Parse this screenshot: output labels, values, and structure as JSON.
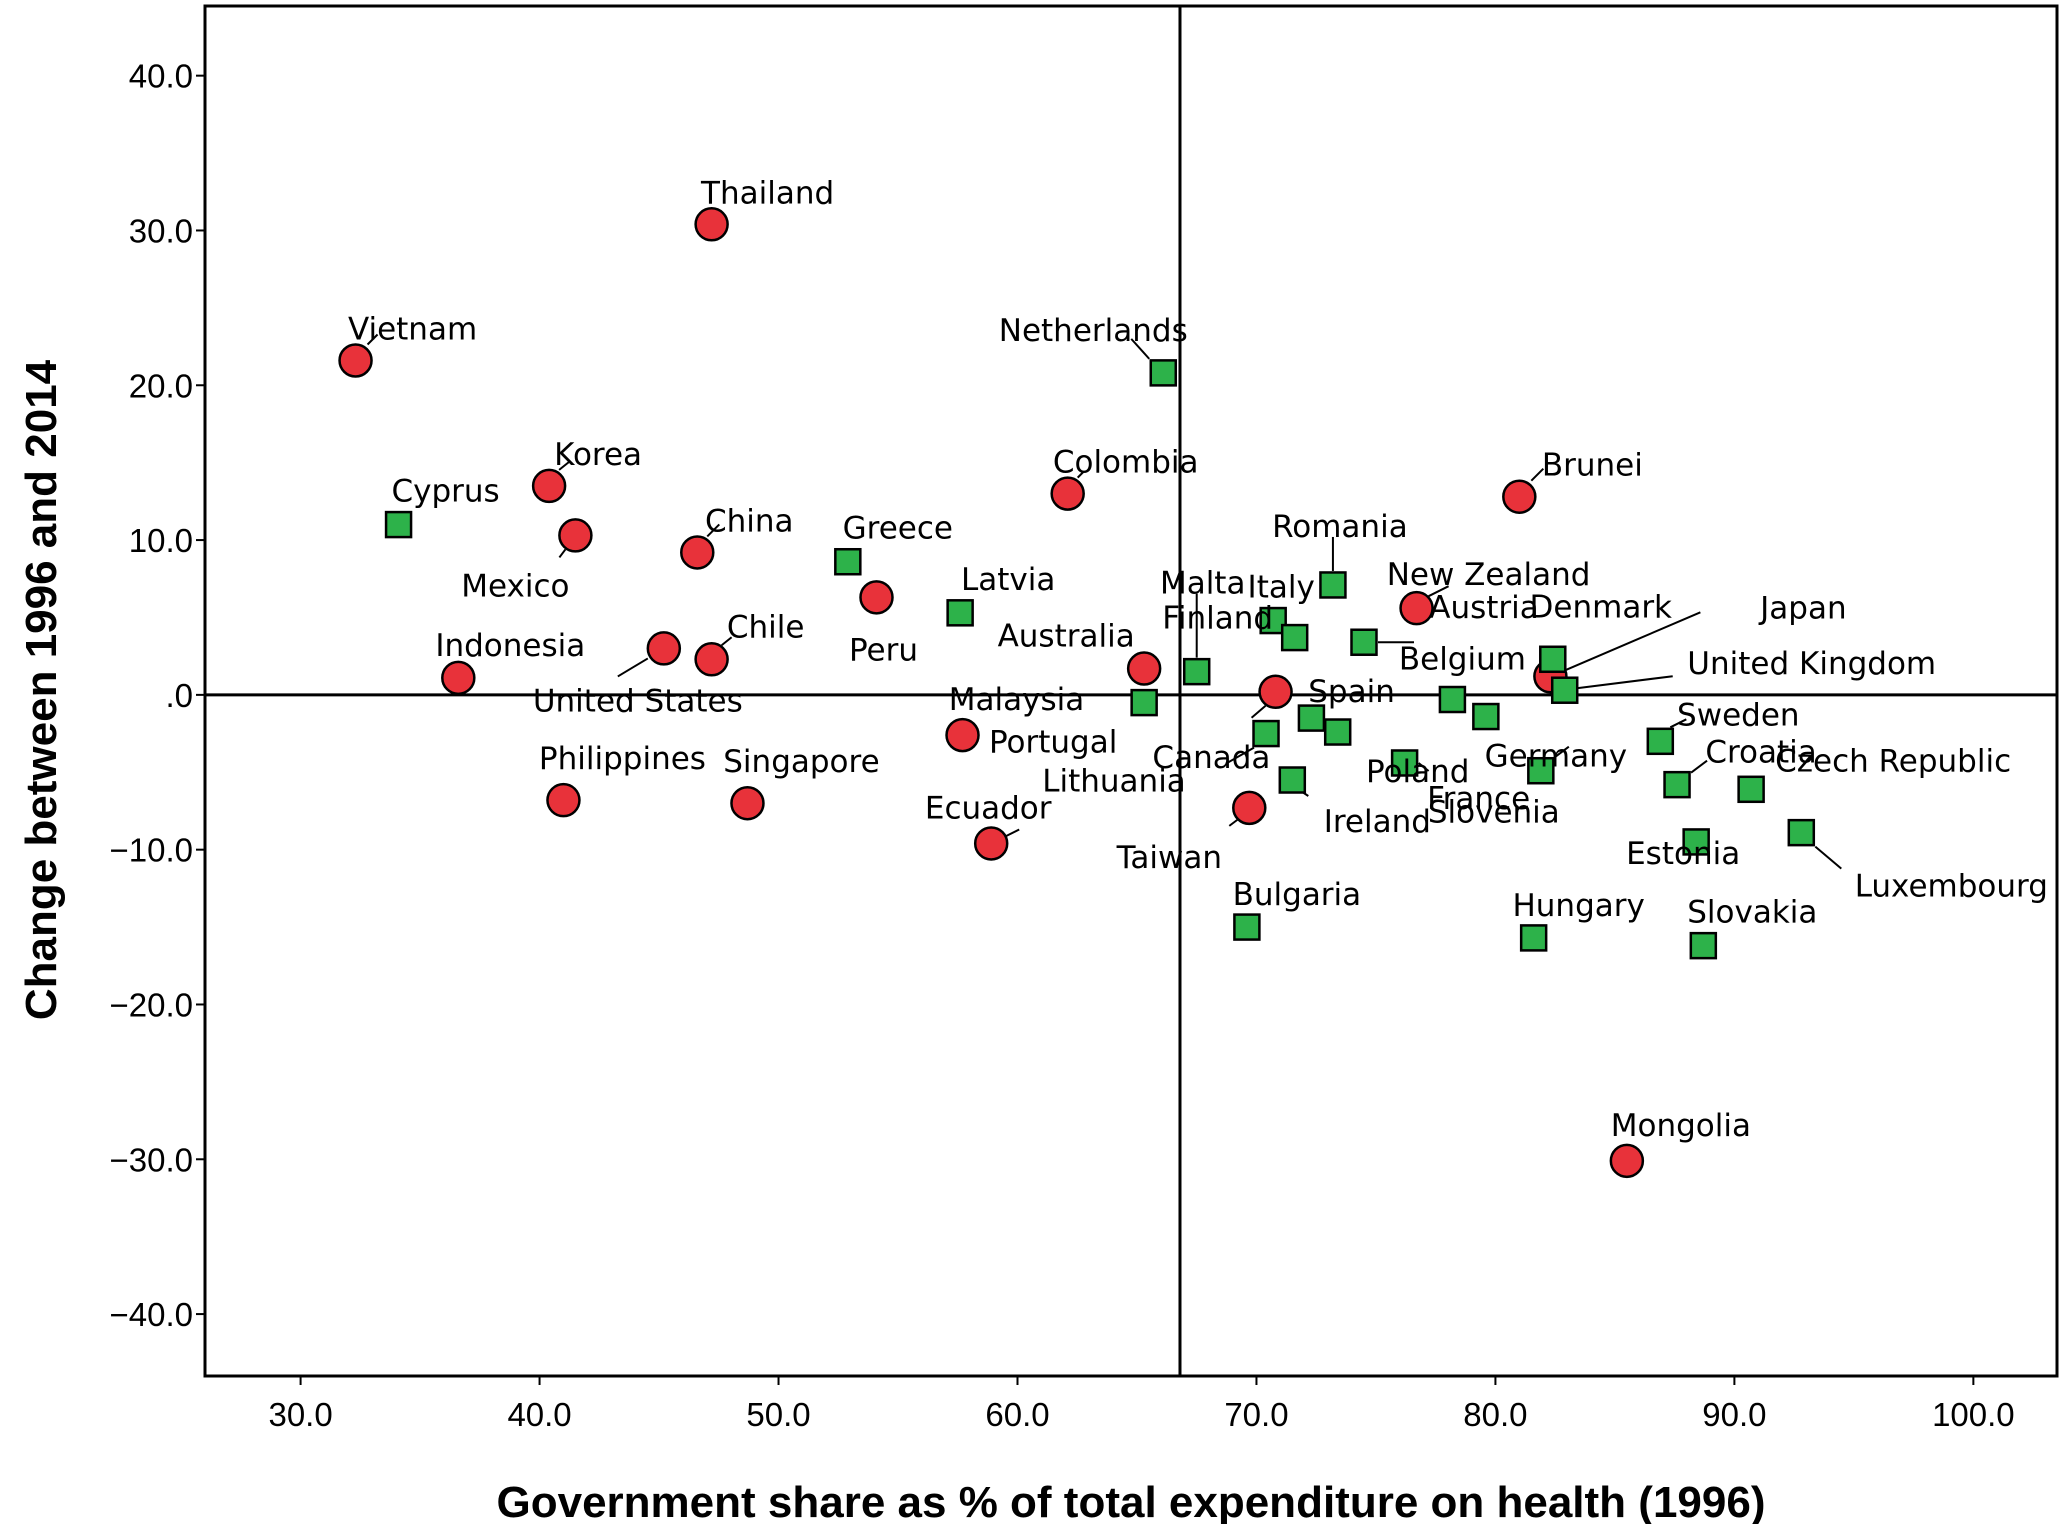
{
  "chart_data": {
    "type": "scatter",
    "xlabel": "Government share as % of total expenditure on health (1996)",
    "ylabel": "Change between 1996 and 2014",
    "xlim": [
      26,
      103.5
    ],
    "ylim": [
      -44,
      44.5
    ],
    "x_ticks": [
      30,
      40,
      50,
      60,
      70,
      80,
      90,
      100
    ],
    "x_tick_labels": [
      "30.0",
      "40.0",
      "50.0",
      "60.0",
      "70.0",
      "80.0",
      "90.0",
      "100.0"
    ],
    "y_ticks": [
      40,
      30,
      20,
      10,
      0,
      -10,
      -20,
      -30,
      -40
    ],
    "y_tick_labels": [
      "40.0",
      "30.0",
      "20.0",
      "10.0",
      ".0",
      "−10.0",
      "−20.0",
      "−30.0",
      "−40.0"
    ],
    "reference_lines": {
      "x": 66.8,
      "y": 0
    },
    "grid": false,
    "colors": {
      "circle": "#e8323a",
      "square": "#2db24a",
      "outline": "#000000"
    },
    "series": [
      {
        "marker": "circle",
        "points": [
          {
            "label": "Thailand",
            "x": 47.2,
            "y": 30.4
          },
          {
            "label": "Vietnam",
            "x": 32.3,
            "y": 21.6
          },
          {
            "label": "Korea",
            "x": 40.4,
            "y": 13.5
          },
          {
            "label": "Mexico",
            "x": 41.5,
            "y": 10.3
          },
          {
            "label": "China",
            "x": 46.6,
            "y": 9.2
          },
          {
            "label": "Colombia",
            "x": 62.1,
            "y": 13.0
          },
          {
            "label": "Brunei",
            "x": 81.0,
            "y": 12.8
          },
          {
            "label": "Peru",
            "x": 54.1,
            "y": 6.3
          },
          {
            "label": "Chile",
            "x": 47.2,
            "y": 2.3
          },
          {
            "label": "United States",
            "x": 45.2,
            "y": 3.0
          },
          {
            "label": "Indonesia",
            "x": 36.6,
            "y": 1.1
          },
          {
            "label": "Australia",
            "x": 65.3,
            "y": 1.7
          },
          {
            "label": "Spain",
            "x": 70.8,
            "y": 0.2
          },
          {
            "label": "New Zealand",
            "x": 76.7,
            "y": 5.6
          },
          {
            "label": "Japan",
            "x": 82.3,
            "y": 1.2
          },
          {
            "label": "Malaysia",
            "x": 57.7,
            "y": -2.6
          },
          {
            "label": "Philippines",
            "x": 41.0,
            "y": -6.8
          },
          {
            "label": "Singapore",
            "x": 48.7,
            "y": -7.0
          },
          {
            "label": "Ecuador",
            "x": 58.9,
            "y": -9.6
          },
          {
            "label": "Taiwan",
            "x": 69.7,
            "y": -7.3
          },
          {
            "label": "Mongolia",
            "x": 85.5,
            "y": -30.1
          }
        ]
      },
      {
        "marker": "square",
        "points": [
          {
            "label": "Netherlands",
            "x": 66.1,
            "y": 20.8
          },
          {
            "label": "Cyprus",
            "x": 34.1,
            "y": 11.0
          },
          {
            "label": "Greece",
            "x": 52.9,
            "y": 8.6
          },
          {
            "label": "Latvia",
            "x": 57.6,
            "y": 5.3
          },
          {
            "label": "Romania",
            "x": 73.2,
            "y": 7.1
          },
          {
            "label": "Italy",
            "x": 70.7,
            "y": 4.8
          },
          {
            "label": "Malta",
            "x": 67.5,
            "y": 1.5
          },
          {
            "label": "Finland",
            "x": 71.6,
            "y": 3.7
          },
          {
            "label": "Austria",
            "x": 74.5,
            "y": 3.4
          },
          {
            "label": "Denmark",
            "x": 82.4,
            "y": 2.3
          },
          {
            "label": "United Kingdom",
            "x": 82.9,
            "y": 0.3
          },
          {
            "label": "Belgium",
            "x": 78.2,
            "y": -0.3
          },
          {
            "label": "Portugal",
            "x": 65.3,
            "y": -0.5
          },
          {
            "label": "Germany",
            "x": 79.6,
            "y": -1.4
          },
          {
            "label": "Canada",
            "x": 72.3,
            "y": -1.5
          },
          {
            "label": "Poland",
            "x": 73.4,
            "y": -2.4
          },
          {
            "label": "Lithuania",
            "x": 70.4,
            "y": -2.5
          },
          {
            "label": "Sweden",
            "x": 86.9,
            "y": -3.0
          },
          {
            "label": "France",
            "x": 76.2,
            "y": -4.4
          },
          {
            "label": "Slovenia",
            "x": 81.9,
            "y": -4.9
          },
          {
            "label": "Ireland",
            "x": 71.5,
            "y": -5.5
          },
          {
            "label": "Croatia",
            "x": 87.6,
            "y": -5.8
          },
          {
            "label": "Czech Republic",
            "x": 90.7,
            "y": -6.1
          },
          {
            "label": "Luxembourg",
            "x": 92.8,
            "y": -8.9
          },
          {
            "label": "Estonia",
            "x": 88.4,
            "y": -9.5
          },
          {
            "label": "Bulgaria",
            "x": 69.6,
            "y": -15.0
          },
          {
            "label": "Hungary",
            "x": 81.6,
            "y": -15.7
          },
          {
            "label": "Slovakia",
            "x": 88.7,
            "y": -16.2
          }
        ]
      }
    ]
  }
}
